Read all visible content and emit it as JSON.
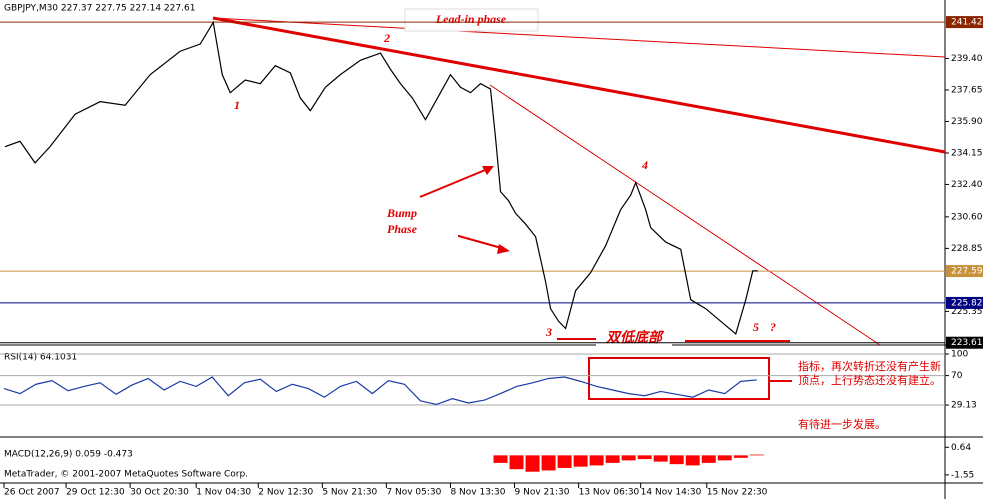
{
  "chart_data": [
    {
      "type": "line",
      "title": "GBPJPY,M30  227.37 227.75 227.14 227.61",
      "color": "#000000",
      "x": [
        2.5,
        10,
        17.5,
        25,
        37.5,
        50,
        62.5,
        75,
        90,
        100,
        106.5,
        111,
        115,
        122.5,
        130,
        137.5,
        145,
        150,
        155,
        162.5,
        170,
        180,
        190,
        195,
        200,
        206,
        212.5,
        220,
        225,
        230,
        235,
        240,
        245,
        247.5,
        250,
        254,
        257.5,
        262.5,
        267.5,
        272.5,
        275,
        279,
        282.5,
        287.5,
        295,
        302.5,
        310,
        315,
        317.5,
        322.5,
        325,
        332.5,
        340,
        345,
        352.5,
        360,
        367.5,
        372.5,
        376,
        378.5
      ],
      "values": [
        234.5,
        234.8,
        233.6,
        234.5,
        236.3,
        237.0,
        236.8,
        238.5,
        239.8,
        240.2,
        241.4,
        238.5,
        237.5,
        238.2,
        238.0,
        239.0,
        238.6,
        237.2,
        236.5,
        237.8,
        238.5,
        239.3,
        239.7,
        238.8,
        238.0,
        237.2,
        236.0,
        237.5,
        238.5,
        237.8,
        237.5,
        238.0,
        237.7,
        235.0,
        232.0,
        231.5,
        230.8,
        230.2,
        229.5,
        227.0,
        225.5,
        224.8,
        224.4,
        226.5,
        227.5,
        229.0,
        231.0,
        231.8,
        232.5,
        231.0,
        230.0,
        229.2,
        228.8,
        226.0,
        225.5,
        224.8,
        224.1,
        226.0,
        227.6,
        227.6
      ],
      "xlim": [
        0,
        472
      ],
      "xticks": [
        {
          "value": 2,
          "label": "26 Oct 2007"
        },
        {
          "value": 33,
          "label": "29 Oct 12:30"
        },
        {
          "value": 65,
          "label": "30 Oct 20:30"
        },
        {
          "value": 98,
          "label": "1 Nov 04:30"
        },
        {
          "value": 129,
          "label": "2 Nov 12:30"
        },
        {
          "value": 161,
          "label": "5 Nov 21:30"
        },
        {
          "value": 193,
          "label": "7 Nov 05:30"
        },
        {
          "value": 225,
          "label": "8 Nov 13:30"
        },
        {
          "value": 257,
          "label": "9 Nov 21:30"
        },
        {
          "value": 289,
          "label": "13 Nov 06:30"
        },
        {
          "value": 320,
          "label": "14 Nov 14:30"
        },
        {
          "value": 353,
          "label": "15 Nov 22:30"
        }
      ],
      "ylim": [
        223.65,
        241.98
      ],
      "yticks": [
        {
          "value": 239.4,
          "label": "239.40"
        },
        237.65,
        {
          "value": 235.9,
          "label": "235.90"
        },
        234.15,
        {
          "value": 232.4,
          "label": "232.40"
        },
        {
          "value": 230.6,
          "label": "230.60"
        },
        228.85,
        225.35
      ],
      "levels": [
        {
          "value": 241.42,
          "color": "#8b2500"
        },
        {
          "value": 227.59,
          "color": "#c8913c"
        },
        {
          "value": 225.82,
          "color": "#000080"
        },
        {
          "value": 223.61,
          "color": "#000000"
        }
      ],
      "annotations": [
        "Lead-in phase",
        "1",
        "2",
        "3",
        "4",
        "5",
        "?",
        "Bump",
        "Phase",
        "双低底部"
      ],
      "notes": [
        "指标，再次转折还没有产生新顶点，上行势态还没有建立。",
        "有待进一步发展。"
      ]
    },
    {
      "type": "line",
      "title": "RSI(14) 64.1031",
      "color": "#1c3aa8",
      "x": [
        2,
        10,
        18,
        26,
        34,
        42,
        50,
        58,
        66,
        74,
        82,
        90,
        98,
        106,
        114,
        122,
        130,
        138,
        146,
        154,
        162,
        170,
        178,
        186,
        194,
        202,
        210,
        218,
        226,
        234,
        242,
        250,
        258,
        266,
        274,
        282,
        290,
        298,
        306,
        314,
        322,
        330,
        338,
        346,
        354,
        362,
        370,
        378
      ],
      "values": [
        52,
        45,
        58,
        63,
        49,
        55,
        60,
        44,
        57,
        66,
        50,
        62,
        55,
        68,
        42,
        60,
        65,
        48,
        58,
        52,
        40,
        55,
        62,
        45,
        63,
        58,
        35,
        30,
        38,
        32,
        36,
        45,
        55,
        60,
        66,
        68,
        62,
        55,
        50,
        45,
        42,
        48,
        44,
        40,
        50,
        45,
        62,
        64
      ],
      "xlim": [
        0,
        472
      ],
      "ylim": [
        0,
        100
      ],
      "yticks": [
        100,
        70,
        29.13
      ]
    },
    {
      "type": "bar",
      "title": "MACD(12,26,9) 0.059 -0.473",
      "color": "#ff0000",
      "x": [
        250,
        258,
        266,
        274,
        282,
        290,
        298,
        306,
        314,
        322,
        330,
        338,
        346,
        354,
        362,
        370,
        378
      ],
      "values": [
        -0.6,
        -1.1,
        -1.3,
        -1.2,
        -1.0,
        -0.9,
        -0.8,
        -0.6,
        -0.4,
        -0.3,
        -0.5,
        -0.7,
        -0.8,
        -0.6,
        -0.4,
        -0.2,
        0.059
      ],
      "xlim": [
        0,
        472
      ],
      "ylim": [
        -1.8,
        0.9
      ],
      "yticks": [
        0.64,
        -1.55
      ],
      "footer": "MetaTrader, © 2001-2007 MetaQuotes Software Corp."
    }
  ]
}
